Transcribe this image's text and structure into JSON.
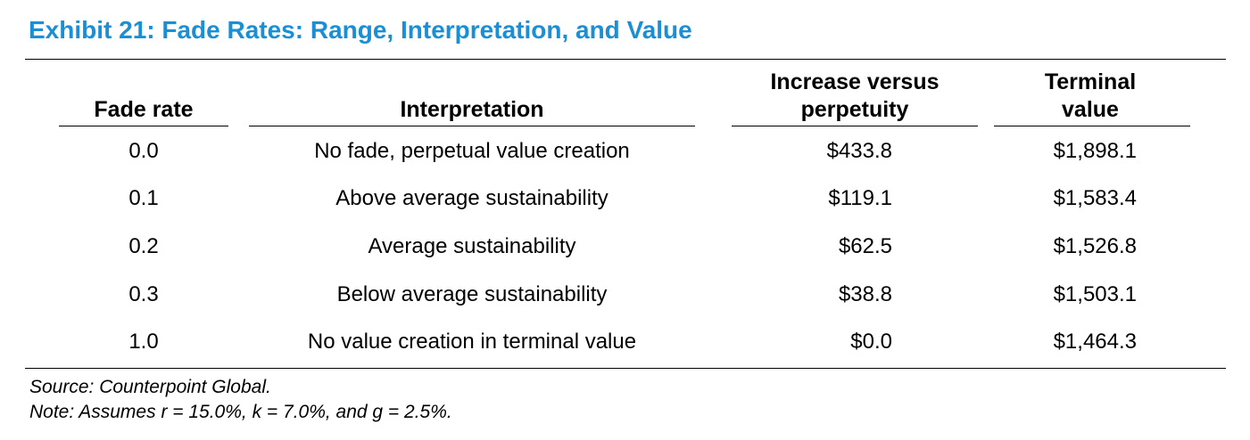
{
  "title": "Exhibit 21: Fade Rates: Range, Interpretation, and Value",
  "table": {
    "headers": {
      "fade_rate": "Fade rate",
      "interpretation": "Interpretation",
      "increase_line1": "Increase versus",
      "increase_line2": "perpetuity",
      "terminal_line1": "Terminal",
      "terminal_line2": "value"
    },
    "rows": [
      {
        "fade_rate": "0.0",
        "interpretation": "No fade, perpetual value creation",
        "increase": "$433.8",
        "terminal": "$1,898.1"
      },
      {
        "fade_rate": "0.1",
        "interpretation": "Above average sustainability",
        "increase": "$119.1",
        "terminal": "$1,583.4"
      },
      {
        "fade_rate": "0.2",
        "interpretation": "Average sustainability",
        "increase": "$62.5",
        "terminal": "$1,526.8"
      },
      {
        "fade_rate": "0.3",
        "interpretation": "Below average sustainability",
        "increase": "$38.8",
        "terminal": "$1,503.1"
      },
      {
        "fade_rate": "1.0",
        "interpretation": "No value creation in terminal value",
        "increase": "$0.0",
        "terminal": "$1,464.3"
      }
    ]
  },
  "source": "Source: Counterpoint Global.",
  "note": "Note: Assumes r = 15.0%, k = 7.0%, and g = 2.5%.",
  "colors": {
    "title": "#1b8fd6",
    "text": "#000000"
  }
}
